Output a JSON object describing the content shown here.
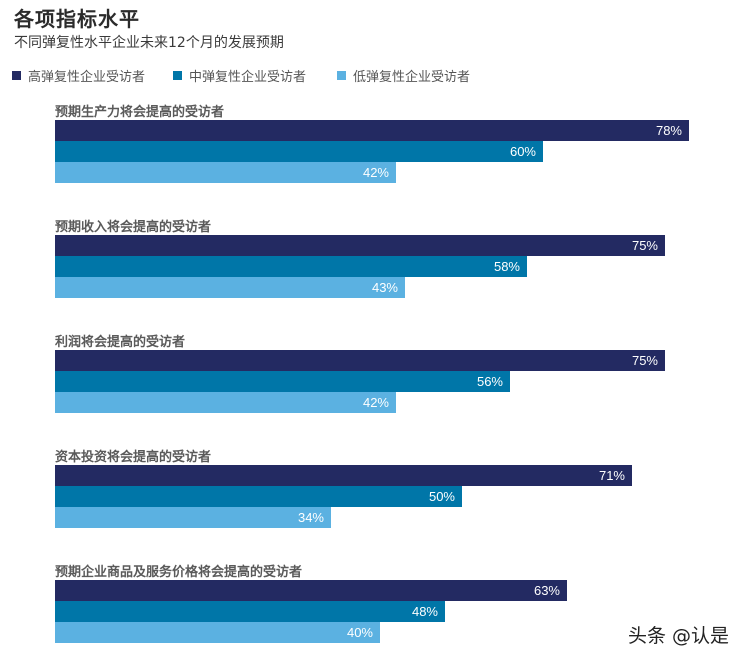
{
  "header": {
    "title": "各项指标水平",
    "subtitle": "不同弹复性水平企业未来12个月的发展预期"
  },
  "legend": [
    {
      "label": "高弹复性企业受访者",
      "color": "#232A62"
    },
    {
      "label": "中弹复性企业受访者",
      "color": "#0076A8"
    },
    {
      "label": "低弹复性企业受访者",
      "color": "#5BB1E1"
    }
  ],
  "groups": [
    {
      "label": "预期生产力将会提高的受访者",
      "values": [
        "78%",
        "60%",
        "42%"
      ]
    },
    {
      "label": "预期收入将会提高的受访者",
      "values": [
        "75%",
        "58%",
        "43%"
      ]
    },
    {
      "label": "利润将会提高的受访者",
      "values": [
        "75%",
        "56%",
        "42%"
      ]
    },
    {
      "label": "资本投资将会提高的受访者",
      "values": [
        "71%",
        "50%",
        "34%"
      ]
    },
    {
      "label": "预期企业商品及服务价格将会提高的受访者",
      "values": [
        "63%",
        "48%",
        "40%"
      ]
    }
  ],
  "watermark": "头条 @认是",
  "chart_data": {
    "type": "bar",
    "orientation": "horizontal",
    "title": "各项指标水平",
    "subtitle": "不同弹复性水平企业未来12个月的发展预期",
    "categories": [
      "预期生产力将会提高的受访者",
      "预期收入将会提高的受访者",
      "利润将会提高的受访者",
      "资本投资将会提高的受访者",
      "预期企业商品及服务价格将会提高的受访者"
    ],
    "series": [
      {
        "name": "高弹复性企业受访者",
        "color": "#232A62",
        "values": [
          78,
          75,
          75,
          71,
          63
        ]
      },
      {
        "name": "中弹复性企业受访者",
        "color": "#0076A8",
        "values": [
          60,
          58,
          56,
          50,
          48
        ]
      },
      {
        "name": "低弹复性企业受访者",
        "color": "#5BB1E1",
        "values": [
          42,
          43,
          42,
          34,
          40
        ]
      }
    ],
    "xlabel": "",
    "ylabel": "",
    "unit": "%",
    "data_labels": true,
    "grid": false,
    "legend_position": "top"
  }
}
